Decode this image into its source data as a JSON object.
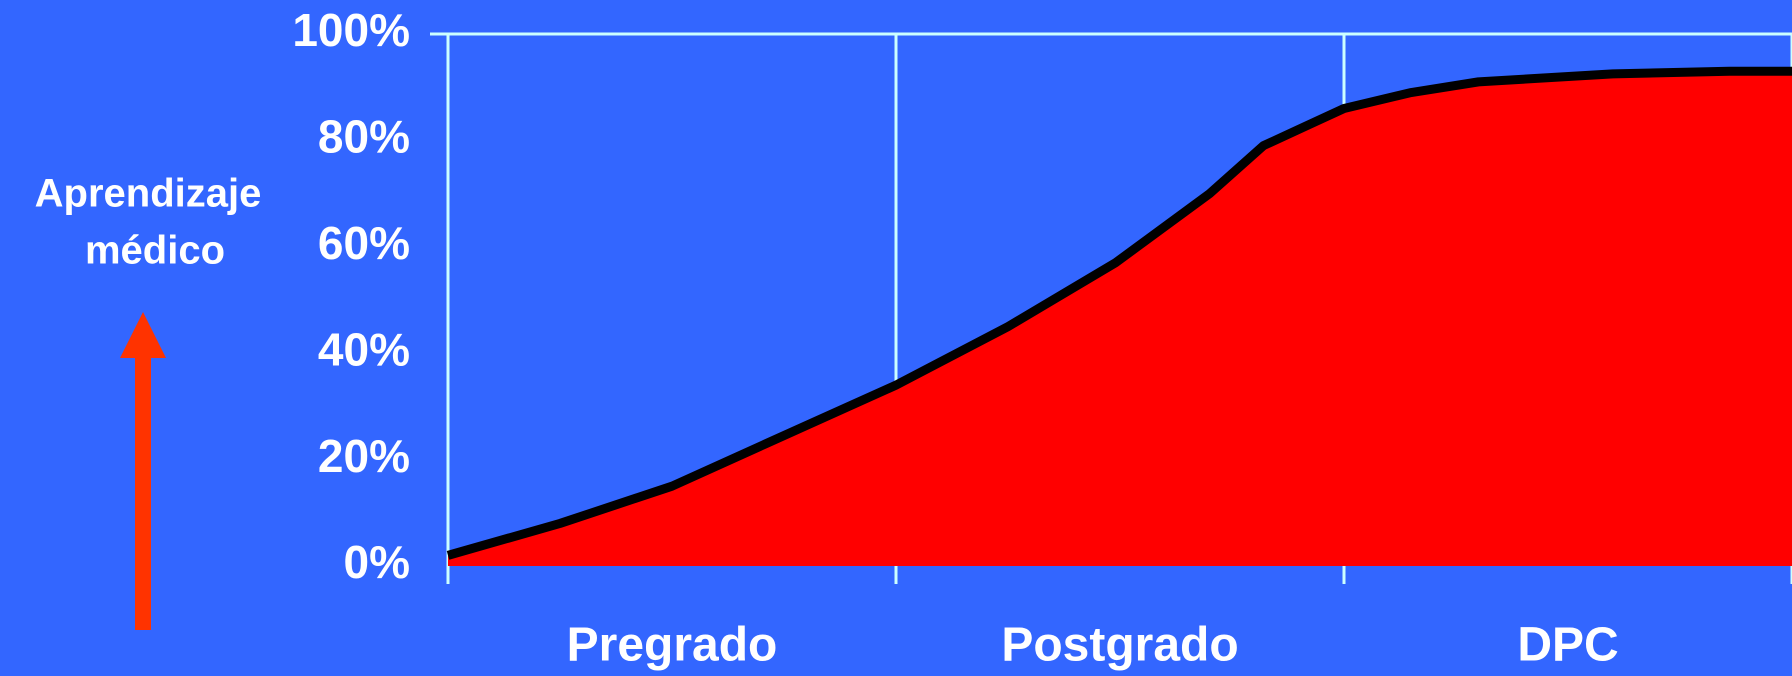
{
  "chart_data": {
    "type": "area",
    "y_label_lines": [
      "Aprendizaje",
      "médico"
    ],
    "categories": [
      "Pregrado",
      "Postgrado",
      "DPC"
    ],
    "x": [
      0,
      0.25,
      0.5,
      0.71,
      1,
      1.25,
      1.49,
      1.7,
      1.82,
      2,
      2.15,
      2.3,
      2.6,
      2.86,
      3
    ],
    "series": [
      {
        "name": "Aprendizaje médico",
        "color": "#ff0000",
        "line_color": "#000000",
        "values": [
          2,
          8,
          15,
          23,
          34,
          45,
          57,
          70,
          79,
          86,
          89,
          91,
          92.5,
          93,
          93
        ]
      }
    ],
    "xlim": [
      0,
      3
    ],
    "xticks": [
      0,
      1,
      2,
      3
    ],
    "ylim": [
      0,
      100
    ],
    "yticks": [
      {
        "value": 0,
        "label": "0%"
      },
      {
        "value": 20,
        "label": "20%"
      },
      {
        "value": 40,
        "label": "40%"
      },
      {
        "value": 60,
        "label": "60%"
      },
      {
        "value": 80,
        "label": "80%"
      },
      {
        "value": 100,
        "label": "100%"
      }
    ],
    "grid": true
  }
}
